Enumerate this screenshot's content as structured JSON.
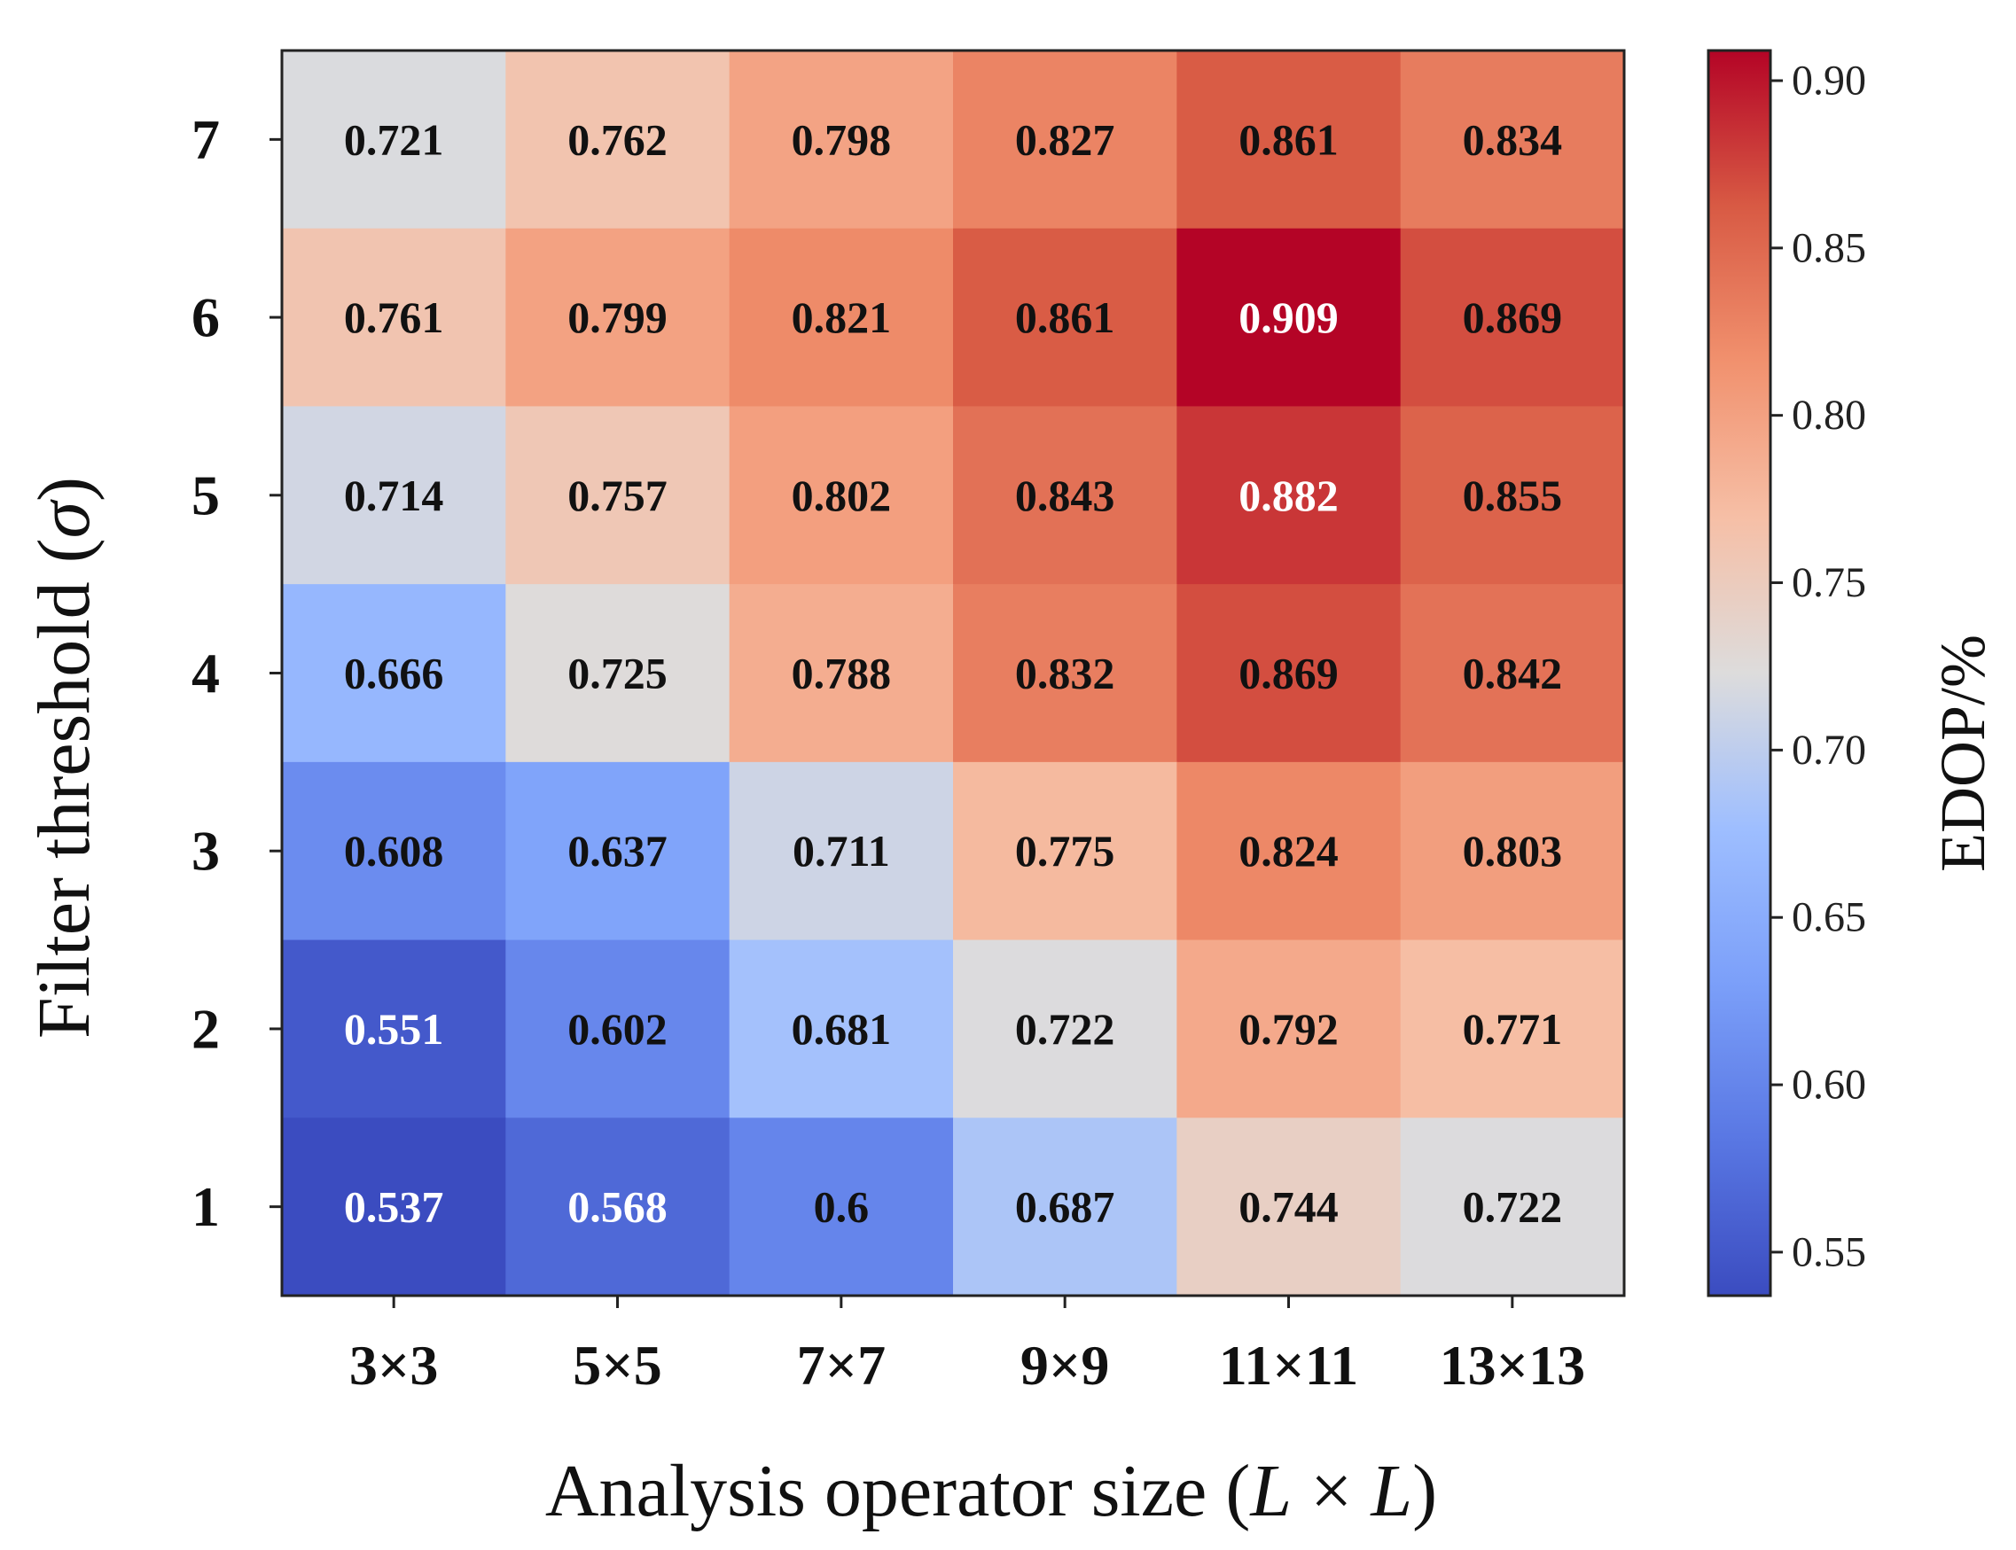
{
  "chart_data": {
    "type": "heatmap",
    "xlabel": "Analysis operator size (L × L)",
    "xlabel_parts": {
      "prefix": "Analysis operator size (",
      "italic_l1": "L",
      "times": " × ",
      "italic_l2": "L",
      "suffix": ")"
    },
    "ylabel": "Filter threshold (σ)",
    "ylabel_parts": {
      "prefix": "Filter threshold (",
      "sigma": "σ",
      "suffix": ")"
    },
    "x_categories": [
      "3×3",
      "5×5",
      "7×7",
      "9×9",
      "11×11",
      "13×13"
    ],
    "y_categories": [
      "7",
      "6",
      "5",
      "4",
      "3",
      "2",
      "1"
    ],
    "values": [
      [
        "0.721",
        "0.762",
        "0.798",
        "0.827",
        "0.861",
        "0.834"
      ],
      [
        "0.761",
        "0.799",
        "0.821",
        "0.861",
        "0.909",
        "0.869"
      ],
      [
        "0.714",
        "0.757",
        "0.802",
        "0.843",
        "0.882",
        "0.855"
      ],
      [
        "0.666",
        "0.725",
        "0.788",
        "0.832",
        "0.869",
        "0.842"
      ],
      [
        "0.608",
        "0.637",
        "0.711",
        "0.775",
        "0.824",
        "0.803"
      ],
      [
        "0.551",
        "0.602",
        "0.681",
        "0.722",
        "0.792",
        "0.771"
      ],
      [
        "0.537",
        "0.568",
        "0.6",
        "0.687",
        "0.744",
        "0.722"
      ]
    ],
    "colorbar": {
      "label": "EDOP/%",
      "range": [
        0.537,
        0.909
      ],
      "ticks": [
        "0.55",
        "0.60",
        "0.65",
        "0.70",
        "0.75",
        "0.80",
        "0.85",
        "0.90"
      ],
      "colormap": "coolwarm"
    }
  }
}
